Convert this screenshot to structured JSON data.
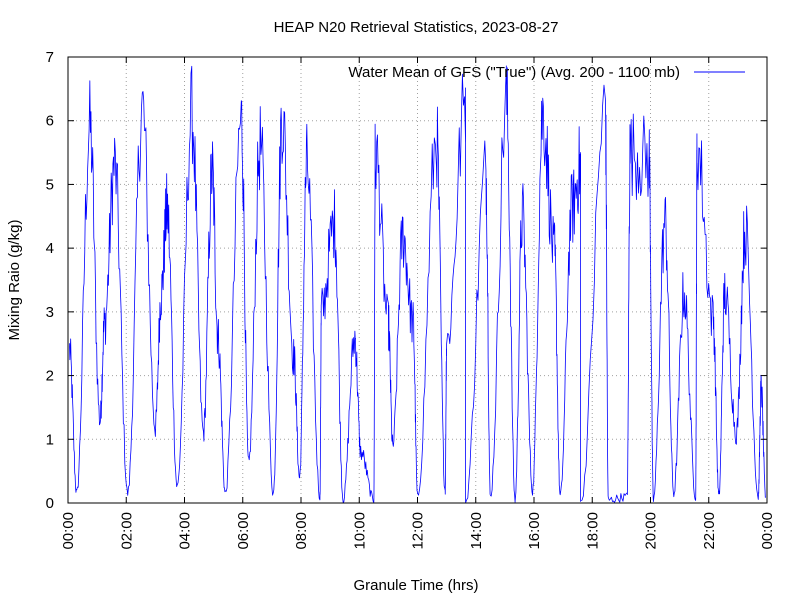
{
  "chart_data": {
    "type": "line",
    "title": "HEAP N20 Retrieval Statistics, 2023-08-27",
    "xlabel": "Granule Time (hrs)",
    "ylabel": "Mixing Raio (g/kg)",
    "xlim": [
      0,
      24
    ],
    "ylim": [
      0,
      7
    ],
    "grid": true,
    "legend_position": "top-right",
    "x_tick_labels": [
      "00:00",
      "02:00",
      "04:00",
      "06:00",
      "08:00",
      "10:00",
      "12:00",
      "14:00",
      "16:00",
      "18:00",
      "20:00",
      "22:00",
      "00:00"
    ],
    "y_tick_labels": [
      "0",
      "1",
      "2",
      "3",
      "4",
      "5",
      "6",
      "7"
    ],
    "series": [
      {
        "name": "Water Mean of GFS (\"True\") (Avg. 200 - 1100 mb)",
        "color": "#0000ff",
        "peaks": [
          {
            "x": 0.05,
            "y": 2.4
          },
          {
            "x": 0.75,
            "y": 5.9
          },
          {
            "x": 1.25,
            "y": 2.8
          },
          {
            "x": 1.6,
            "y": 5.3
          },
          {
            "x": 2.55,
            "y": 6.2
          },
          {
            "x": 3.2,
            "y": 3.3
          },
          {
            "x": 3.4,
            "y": 4.6
          },
          {
            "x": 4.25,
            "y": 6.1
          },
          {
            "x": 4.95,
            "y": 5.2
          },
          {
            "x": 5.15,
            "y": 2.6
          },
          {
            "x": 5.95,
            "y": 6.0
          },
          {
            "x": 6.6,
            "y": 5.6
          },
          {
            "x": 7.35,
            "y": 6.1
          },
          {
            "x": 7.75,
            "y": 2.3
          },
          {
            "x": 8.2,
            "y": 5.3
          },
          {
            "x": 8.7,
            "y": 3.0
          },
          {
            "x": 9.15,
            "y": 4.4
          },
          {
            "x": 9.85,
            "y": 2.6
          },
          {
            "x": 10.55,
            "y": 5.5
          },
          {
            "x": 11.0,
            "y": 2.8
          },
          {
            "x": 11.5,
            "y": 4.2
          },
          {
            "x": 11.85,
            "y": 2.8
          },
          {
            "x": 12.65,
            "y": 5.7
          },
          {
            "x": 13.0,
            "y": 2.5
          },
          {
            "x": 13.65,
            "y": 6.3
          },
          {
            "x": 14.35,
            "y": 5.2
          },
          {
            "x": 15.05,
            "y": 6.3
          },
          {
            "x": 15.6,
            "y": 4.5
          },
          {
            "x": 16.3,
            "y": 6.1
          },
          {
            "x": 16.7,
            "y": 3.9
          },
          {
            "x": 17.3,
            "y": 4.6
          },
          {
            "x": 17.6,
            "y": 5.3
          },
          {
            "x": 18.45,
            "y": 6.2
          },
          {
            "x": 19.3,
            "y": 5.5
          },
          {
            "x": 19.95,
            "y": 5.4
          },
          {
            "x": 20.5,
            "y": 4.4
          },
          {
            "x": 21.15,
            "y": 3.3
          },
          {
            "x": 21.6,
            "y": 5.6
          },
          {
            "x": 22.15,
            "y": 2.9
          },
          {
            "x": 22.55,
            "y": 3.3
          },
          {
            "x": 23.25,
            "y": 4.3
          },
          {
            "x": 23.8,
            "y": 1.8
          }
        ],
        "troughs": [
          {
            "x": 0.3,
            "y": 0.15
          },
          {
            "x": 1.1,
            "y": 1.3
          },
          {
            "x": 2.05,
            "y": 0.15
          },
          {
            "x": 3.0,
            "y": 1.2
          },
          {
            "x": 3.75,
            "y": 0.25
          },
          {
            "x": 4.65,
            "y": 1.1
          },
          {
            "x": 5.4,
            "y": 0.15
          },
          {
            "x": 6.2,
            "y": 0.6
          },
          {
            "x": 7.05,
            "y": 0.15
          },
          {
            "x": 7.95,
            "y": 0.4
          },
          {
            "x": 8.65,
            "y": 0.1
          },
          {
            "x": 9.45,
            "y": 0.05
          },
          {
            "x": 10.05,
            "y": 0.8
          },
          {
            "x": 10.5,
            "y": 0.05
          },
          {
            "x": 11.15,
            "y": 0.9
          },
          {
            "x": 12.0,
            "y": 0.1
          },
          {
            "x": 12.95,
            "y": 0.2
          },
          {
            "x": 13.65,
            "y": 0.0
          },
          {
            "x": 14.5,
            "y": 0.1
          },
          {
            "x": 15.35,
            "y": 0.05
          },
          {
            "x": 15.95,
            "y": 0.2
          },
          {
            "x": 16.9,
            "y": 0.1
          },
          {
            "x": 17.6,
            "y": 0.0
          },
          {
            "x": 18.55,
            "y": 0.05
          },
          {
            "x": 19.2,
            "y": 0.1
          },
          {
            "x": 20.1,
            "y": 0.05
          },
          {
            "x": 20.8,
            "y": 0.15
          },
          {
            "x": 21.55,
            "y": 0.1
          },
          {
            "x": 22.35,
            "y": 0.1
          },
          {
            "x": 22.95,
            "y": 1.1
          },
          {
            "x": 23.7,
            "y": 0.1
          },
          {
            "x": 23.95,
            "y": 0.1
          }
        ]
      }
    ]
  }
}
